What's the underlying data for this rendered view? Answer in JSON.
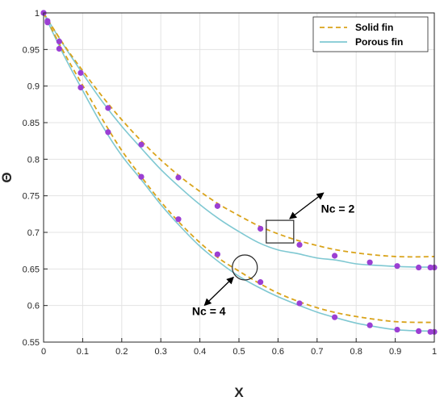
{
  "chart_data": {
    "type": "line",
    "xlabel": "X",
    "ylabel": "Θ",
    "xlim": [
      0,
      1
    ],
    "ylim": [
      0.55,
      1
    ],
    "xticks": [
      0,
      0.1,
      0.2,
      0.3,
      0.4,
      0.5,
      0.6,
      0.7,
      0.8,
      0.9,
      1
    ],
    "xtick_labels": [
      "0",
      "0.1",
      "0.2",
      "0.3",
      "0.4",
      "0.5",
      "0.6",
      "0.7",
      "0.8",
      "0.9",
      "1"
    ],
    "yticks": [
      0.55,
      0.6,
      0.65,
      0.7,
      0.75,
      0.8,
      0.85,
      0.9,
      0.95,
      1
    ],
    "ytick_labels": [
      "0.55",
      "0.6",
      "0.65",
      "0.7",
      "0.75",
      "0.8",
      "0.85",
      "0.9",
      "0.95",
      "1"
    ],
    "grid": true,
    "legend_position": "top-right",
    "legend": [
      "Solid fin",
      "Porous fin"
    ],
    "colors": {
      "solid": "#D9A31A",
      "porous": "#7FC8D2",
      "markers": "#9B3FD3"
    },
    "series": [
      {
        "name": "Solid fin",
        "group": "Nc = 2",
        "style": "dashed",
        "x": [
          0,
          0.05,
          0.1,
          0.15,
          0.2,
          0.25,
          0.3,
          0.35,
          0.4,
          0.45,
          0.5,
          0.55,
          0.6,
          0.65,
          0.7,
          0.75,
          0.8,
          0.85,
          0.9,
          0.95,
          1
        ],
        "y": [
          1,
          0.958,
          0.921,
          0.886,
          0.854,
          0.825,
          0.799,
          0.776,
          0.756,
          0.738,
          0.723,
          0.709,
          0.698,
          0.689,
          0.682,
          0.676,
          0.672,
          0.669,
          0.667,
          0.6665,
          0.667
        ]
      },
      {
        "name": "Porous fin",
        "group": "Nc = 2",
        "style": "solid",
        "x": [
          0,
          0.05,
          0.1,
          0.15,
          0.2,
          0.25,
          0.3,
          0.35,
          0.4,
          0.45,
          0.5,
          0.55,
          0.6,
          0.65,
          0.7,
          0.75,
          0.8,
          0.85,
          0.9,
          0.95,
          1
        ],
        "y": [
          1,
          0.957,
          0.917,
          0.879,
          0.845,
          0.815,
          0.786,
          0.761,
          0.738,
          0.718,
          0.701,
          0.686,
          0.676,
          0.671,
          0.665,
          0.662,
          0.657,
          0.655,
          0.6535,
          0.6527,
          0.6525
        ]
      },
      {
        "name": "Solid fin",
        "group": "Nc = 4",
        "style": "dashed",
        "x": [
          0,
          0.05,
          0.1,
          0.15,
          0.2,
          0.25,
          0.3,
          0.35,
          0.4,
          0.45,
          0.5,
          0.55,
          0.6,
          0.65,
          0.7,
          0.75,
          0.8,
          0.85,
          0.9,
          0.95,
          1
        ],
        "y": [
          1,
          0.948,
          0.901,
          0.855,
          0.812,
          0.776,
          0.742,
          0.712,
          0.686,
          0.664,
          0.647,
          0.631,
          0.617,
          0.606,
          0.597,
          0.59,
          0.585,
          0.581,
          0.578,
          0.577,
          0.577
        ]
      },
      {
        "name": "Porous fin",
        "group": "Nc = 4",
        "style": "solid",
        "x": [
          0,
          0.05,
          0.1,
          0.15,
          0.2,
          0.25,
          0.3,
          0.35,
          0.4,
          0.45,
          0.5,
          0.55,
          0.6,
          0.65,
          0.7,
          0.75,
          0.8,
          0.85,
          0.9,
          0.95,
          1
        ],
        "y": [
          1,
          0.944,
          0.894,
          0.846,
          0.805,
          0.772,
          0.738,
          0.708,
          0.681,
          0.659,
          0.64,
          0.625,
          0.612,
          0.601,
          0.591,
          0.583,
          0.576,
          0.571,
          0.567,
          0.5655,
          0.565
        ]
      }
    ],
    "markers": [
      {
        "group": "Nc = 2",
        "x": [
          0,
          0.01,
          0.04,
          0.095,
          0.165,
          0.25,
          0.345,
          0.445,
          0.555,
          0.655,
          0.745,
          0.835,
          0.905,
          0.96,
          0.99,
          1
        ],
        "y": [
          1,
          0.987,
          0.961,
          0.918,
          0.87,
          0.82,
          0.775,
          0.736,
          0.705,
          0.683,
          0.668,
          0.659,
          0.654,
          0.652,
          0.652,
          0.652
        ]
      },
      {
        "group": "Nc = 4",
        "x": [
          0,
          0.01,
          0.04,
          0.095,
          0.165,
          0.25,
          0.345,
          0.445,
          0.555,
          0.655,
          0.745,
          0.835,
          0.905,
          0.96,
          0.99,
          1
        ],
        "y": [
          1,
          0.989,
          0.951,
          0.898,
          0.837,
          0.776,
          0.718,
          0.67,
          0.632,
          0.603,
          0.584,
          0.573,
          0.567,
          0.565,
          0.564,
          0.564
        ]
      }
    ],
    "annotations": [
      {
        "text": "Nc = 2",
        "shape": "rectangle",
        "target_x": 0.605,
        "target_y": 0.701,
        "label_x": 0.71,
        "label_y": 0.727
      },
      {
        "text": "Nc = 4",
        "shape": "circle",
        "target_x": 0.515,
        "target_y": 0.652,
        "label_x": 0.38,
        "label_y": 0.587
      }
    ]
  }
}
